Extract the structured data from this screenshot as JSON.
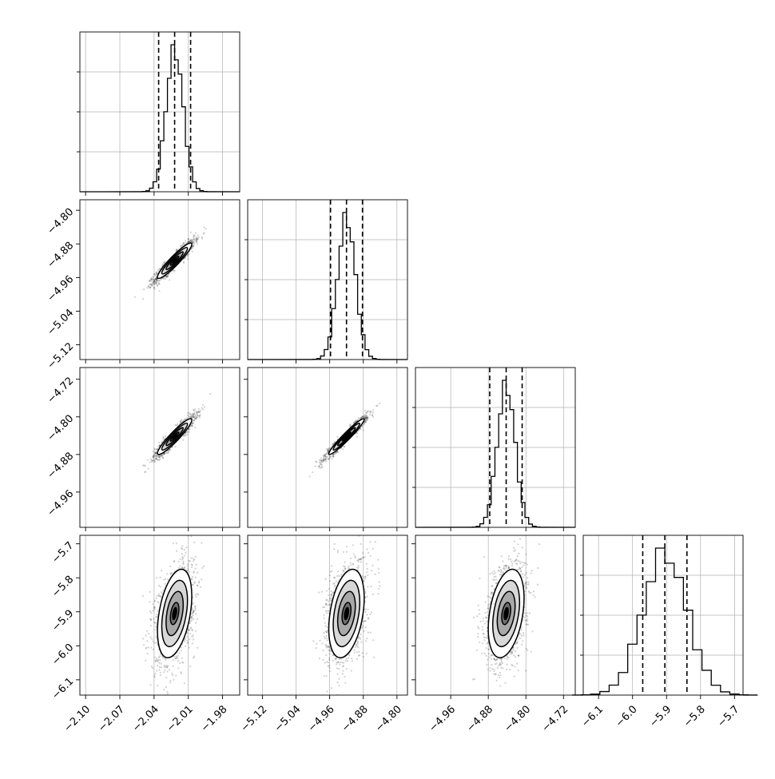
{
  "chart_data": {
    "type": "corner",
    "grid": true,
    "colors": {
      "line": "#000000",
      "grid": "#b0b0b0",
      "points": "#000000"
    },
    "parameters": [
      {
        "ticks": [
          "-2.10",
          "-2.07",
          "-2.04",
          "-2.01",
          "-1.98"
        ],
        "range": [
          -2.105,
          -1.965
        ],
        "median": -2.022,
        "q16": -2.036,
        "q84": -2.008,
        "sd": 0.0075
      },
      {
        "ticks": [
          "-5.12",
          "-5.04",
          "-4.96",
          "-4.88",
          "-4.80"
        ],
        "range": [
          -5.155,
          -4.775
        ],
        "median": -4.92,
        "q16": -4.958,
        "q84": -4.882,
        "sd": 0.021
      },
      {
        "ticks": [
          "-4.96",
          "-4.88",
          "-4.80",
          "-4.72"
        ],
        "range": [
          -5.035,
          -4.695
        ],
        "median": -4.842,
        "q16": -4.877,
        "q84": -4.808,
        "sd": 0.019
      },
      {
        "ticks": [
          "-6.1",
          "-6.0",
          "-5.9",
          "-5.8",
          "-5.7"
        ],
        "range": [
          -6.145,
          -5.675
        ],
        "median": -5.905,
        "q16": -5.97,
        "q84": -5.84,
        "sd": 0.065
      }
    ],
    "correlations": [
      {
        "i": 1,
        "j": 0,
        "rho": 0.93
      },
      {
        "i": 2,
        "j": 0,
        "rho": 0.93
      },
      {
        "i": 2,
        "j": 1,
        "rho": 0.96
      },
      {
        "i": 3,
        "j": 0,
        "rho": 0.4
      },
      {
        "i": 3,
        "j": 1,
        "rho": 0.35
      },
      {
        "i": 3,
        "j": 2,
        "rho": 0.35
      }
    ],
    "histogram_bins": 20,
    "contour_levels_sigma": [
      0.5,
      1.0,
      1.5,
      2.0
    ]
  }
}
